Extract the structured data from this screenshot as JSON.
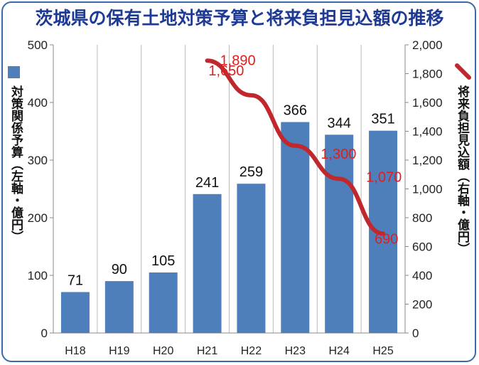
{
  "title": "茨城県の保有土地対策予算と将来負担見込額の推移",
  "legend": {
    "left_label": "対策関係予算（左軸・億円）",
    "right_label": "将来負担見込額（右軸・億円）"
  },
  "colors": {
    "bar": "#4f7fba",
    "line": "#c0282d",
    "label_red": "#e01e1e",
    "title": "#1f3a93",
    "frame": "#3a6aa8"
  },
  "chart_data": {
    "type": "bar+line",
    "categories": [
      "H18",
      "H19",
      "H20",
      "H21",
      "H22",
      "H23",
      "H24",
      "H25"
    ],
    "series": [
      {
        "type": "bar",
        "axis": "left",
        "values": [
          71,
          90,
          105,
          241,
          259,
          366,
          344,
          351
        ],
        "labels": [
          "71",
          "90",
          "105",
          "241",
          "259",
          "366",
          "344",
          "351"
        ]
      },
      {
        "type": "line",
        "axis": "right",
        "points": [
          {
            "x": "H21",
            "y": 1890,
            "label": "1,890"
          },
          {
            "x": "H22",
            "y": 1650,
            "label": "1,650"
          },
          {
            "x": "H23",
            "y": 1300,
            "label": "1,300"
          },
          {
            "x": "H24",
            "y": 1070,
            "label": "1,070"
          },
          {
            "x": "H25",
            "y": 690,
            "label": "690"
          }
        ]
      }
    ],
    "y_left": {
      "min": 0,
      "max": 500,
      "ticks": [
        "0",
        "100",
        "200",
        "300",
        "400",
        "500"
      ]
    },
    "y_right": {
      "min": 0,
      "max": 2000,
      "ticks": [
        "0",
        "200",
        "400",
        "600",
        "800",
        "1,000",
        "1,200",
        "1,400",
        "1,600",
        "1,800",
        "2,000"
      ]
    },
    "grid": "vertical"
  }
}
